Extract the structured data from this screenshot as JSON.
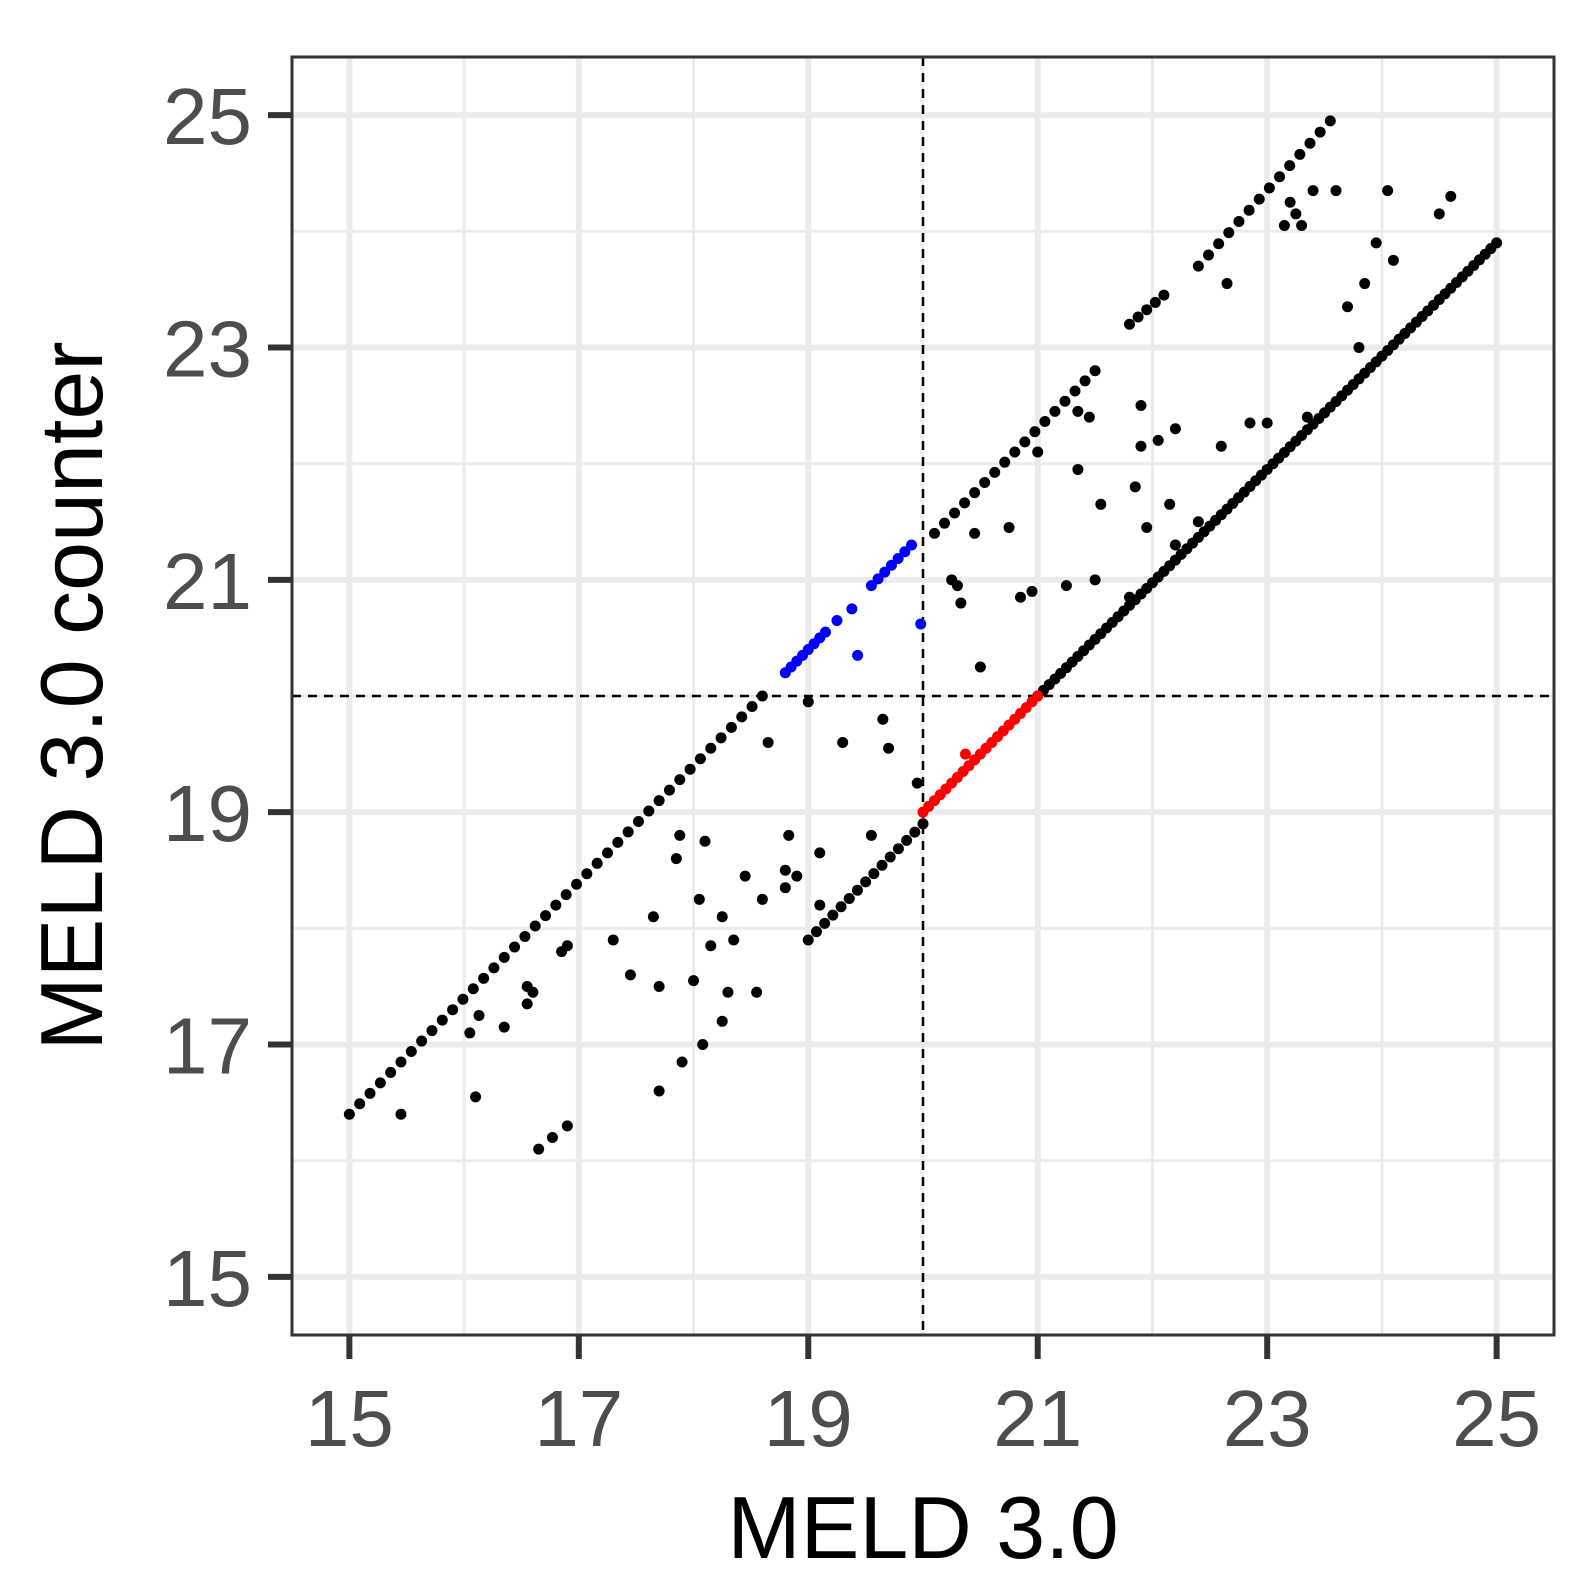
{
  "chart_data": {
    "type": "scatter",
    "xlabel": "MELD 3.0",
    "ylabel": "MELD 3.0 counter",
    "xlim": [
      14.5,
      25.5
    ],
    "ylim": [
      14.5,
      25.5
    ],
    "x_ticks": [
      "15",
      "17",
      "19",
      "21",
      "23",
      "25"
    ],
    "y_ticks": [
      "15",
      "17",
      "19",
      "21",
      "23",
      "25"
    ],
    "grid": true,
    "reference_lines": [
      {
        "orientation": "vertical",
        "value": 20,
        "style": "dashed"
      },
      {
        "orientation": "horizontal",
        "value": 20,
        "style": "dashed"
      }
    ],
    "series": [
      {
        "color": "#000000",
        "segments": [
          {
            "from": [
              15.0,
              16.4
            ],
            "to": [
              18.6,
              20.0
            ],
            "step": 0.09
          },
          {
            "from": [
              20.1,
              21.4
            ],
            "to": [
              21.5,
              22.8
            ],
            "step": 0.09
          },
          {
            "from": [
              21.8,
              23.2
            ],
            "to": [
              22.1,
              23.45
            ],
            "step": 0.08
          },
          {
            "from": [
              22.4,
              23.7
            ],
            "to": [
              23.55,
              24.95
            ],
            "step": 0.09
          },
          {
            "from": [
              19.0,
              17.9
            ],
            "to": [
              20.0,
              18.9
            ],
            "step": 0.07
          },
          {
            "from": [
              21.0,
              20.0
            ],
            "to": [
              25.0,
              23.9
            ],
            "step": 0.05
          }
        ],
        "points": [
          [
            15.45,
            16.4
          ],
          [
            16.1,
            16.55
          ],
          [
            16.13,
            17.25
          ],
          [
            16.05,
            17.1
          ],
          [
            16.35,
            17.15
          ],
          [
            16.65,
            16.1
          ],
          [
            16.77,
            16.2
          ],
          [
            16.9,
            16.3
          ],
          [
            16.55,
            17.5
          ],
          [
            16.6,
            17.45
          ],
          [
            16.55,
            17.35
          ],
          [
            16.85,
            17.8
          ],
          [
            16.9,
            17.85
          ],
          [
            17.3,
            17.9
          ],
          [
            17.45,
            17.6
          ],
          [
            17.65,
            18.1
          ],
          [
            17.7,
            17.5
          ],
          [
            17.7,
            16.6
          ],
          [
            17.85,
            18.6
          ],
          [
            17.88,
            18.8
          ],
          [
            17.9,
            16.85
          ],
          [
            18.0,
            17.55
          ],
          [
            18.05,
            18.25
          ],
          [
            18.08,
            17.0
          ],
          [
            18.1,
            18.75
          ],
          [
            18.15,
            17.85
          ],
          [
            18.25,
            18.1
          ],
          [
            18.25,
            17.2
          ],
          [
            18.3,
            17.45
          ],
          [
            18.35,
            17.9
          ],
          [
            18.45,
            18.45
          ],
          [
            18.55,
            17.45
          ],
          [
            18.6,
            18.25
          ],
          [
            18.65,
            19.6
          ],
          [
            18.8,
            18.35
          ],
          [
            18.8,
            18.5
          ],
          [
            18.83,
            18.8
          ],
          [
            18.9,
            18.45
          ],
          [
            19.0,
            19.95
          ],
          [
            19.1,
            18.2
          ],
          [
            19.1,
            18.65
          ],
          [
            19.3,
            19.6
          ],
          [
            19.55,
            18.8
          ],
          [
            19.65,
            19.8
          ],
          [
            19.7,
            19.55
          ],
          [
            19.95,
            19.25
          ],
          [
            20.25,
            21.0
          ],
          [
            20.3,
            20.95
          ],
          [
            20.33,
            20.8
          ],
          [
            20.45,
            21.4
          ],
          [
            20.5,
            20.25
          ],
          [
            20.75,
            21.45
          ],
          [
            20.85,
            20.85
          ],
          [
            20.95,
            20.9
          ],
          [
            21.0,
            22.1
          ],
          [
            21.25,
            20.95
          ],
          [
            21.35,
            21.95
          ],
          [
            21.35,
            22.45
          ],
          [
            21.45,
            22.4
          ],
          [
            21.5,
            21.0
          ],
          [
            21.55,
            21.65
          ],
          [
            21.8,
            20.85
          ],
          [
            21.85,
            21.8
          ],
          [
            21.9,
            22.5
          ],
          [
            21.9,
            22.15
          ],
          [
            21.95,
            21.45
          ],
          [
            22.05,
            22.2
          ],
          [
            22.15,
            21.65
          ],
          [
            22.2,
            21.3
          ],
          [
            22.2,
            22.3
          ],
          [
            22.4,
            21.5
          ],
          [
            22.6,
            22.15
          ],
          [
            22.65,
            23.55
          ],
          [
            22.85,
            22.35
          ],
          [
            23.0,
            22.35
          ],
          [
            23.15,
            24.05
          ],
          [
            23.2,
            24.25
          ],
          [
            23.25,
            24.15
          ],
          [
            23.3,
            24.05
          ],
          [
            23.35,
            22.4
          ],
          [
            23.4,
            24.35
          ],
          [
            23.6,
            24.35
          ],
          [
            23.7,
            23.35
          ],
          [
            23.8,
            23.0
          ],
          [
            23.85,
            23.55
          ],
          [
            23.95,
            23.9
          ],
          [
            24.05,
            24.35
          ],
          [
            24.1,
            23.75
          ],
          [
            24.5,
            24.15
          ],
          [
            24.6,
            24.3
          ]
        ]
      },
      {
        "color": "#0000ff",
        "segments": [
          {
            "from": [
              18.8,
              20.2
            ],
            "to": [
              19.15,
              20.55
            ],
            "step": 0.05
          },
          {
            "from": [
              19.55,
              20.95
            ],
            "to": [
              19.9,
              21.3
            ],
            "step": 0.06
          }
        ],
        "points": [
          [
            19.25,
            20.65
          ],
          [
            19.38,
            20.75
          ],
          [
            19.43,
            20.35
          ],
          [
            19.98,
            20.62
          ]
        ]
      },
      {
        "color": "#ff0000",
        "segments": [
          {
            "from": [
              20.0,
              19.0
            ],
            "to": [
              21.0,
              20.0
            ],
            "step": 0.05
          }
        ],
        "points": [
          [
            20.37,
            19.5
          ]
        ]
      }
    ]
  }
}
